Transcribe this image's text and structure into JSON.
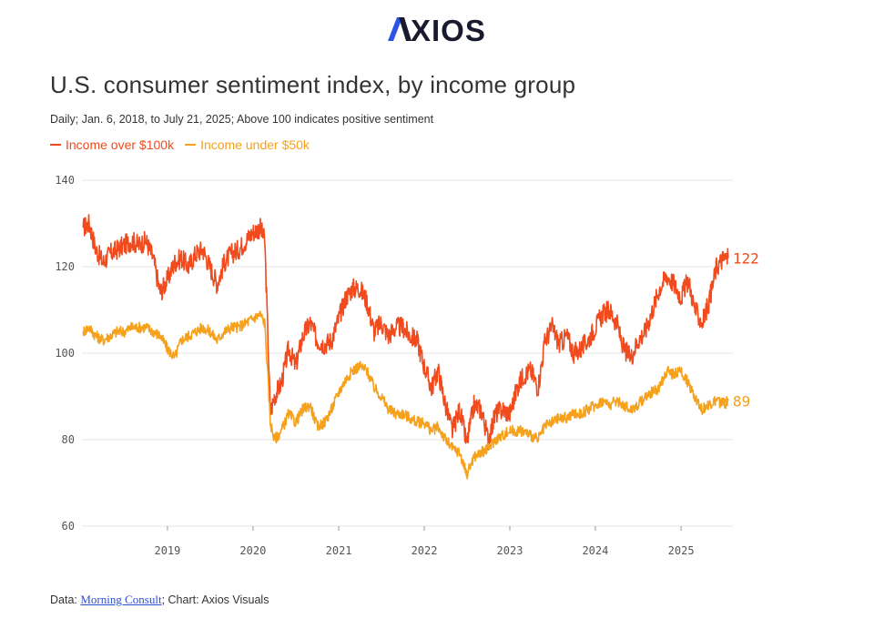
{
  "brand": {
    "name": "AXIOS"
  },
  "colors": {
    "high_income": "#f04a1d",
    "low_income": "#f5a11c",
    "grid": "#e4e4e4",
    "logo_dark": "#1a1a2e",
    "logo_blue": "#2a55e6"
  },
  "source": {
    "prefix": "Data: ",
    "link_text": "Morning Consult",
    "suffix": "; Chart: Axios Visuals"
  },
  "chart_data": {
    "type": "line",
    "title": "U.S. consumer sentiment index, by income group",
    "subtitle": "Daily; Jan. 6, 2018, to July 21, 2025; Above 100 indicates positive sentiment",
    "ylim": [
      60,
      140
    ],
    "yticks": [
      60,
      80,
      100,
      120,
      140
    ],
    "xticks": [
      "2019",
      "2020",
      "2021",
      "2022",
      "2023",
      "2024",
      "2025"
    ],
    "grid": true,
    "legend_position": "top-left",
    "series": [
      {
        "name": "Income over $100k",
        "color": "#f04a1d",
        "end_label": "122",
        "x": [
          "2018-01-06",
          "2018-02-01",
          "2018-03-01",
          "2018-04-01",
          "2018-05-01",
          "2018-06-01",
          "2018-07-01",
          "2018-08-01",
          "2018-09-01",
          "2018-10-01",
          "2018-11-01",
          "2018-12-01",
          "2019-01-01",
          "2019-02-01",
          "2019-03-01",
          "2019-04-01",
          "2019-05-01",
          "2019-06-01",
          "2019-07-01",
          "2019-08-01",
          "2019-09-01",
          "2019-10-01",
          "2019-11-01",
          "2019-12-01",
          "2020-01-01",
          "2020-02-01",
          "2020-02-20",
          "2020-03-01",
          "2020-03-15",
          "2020-04-01",
          "2020-05-01",
          "2020-06-01",
          "2020-07-01",
          "2020-08-01",
          "2020-09-01",
          "2020-10-01",
          "2020-11-01",
          "2020-12-01",
          "2021-01-01",
          "2021-02-01",
          "2021-03-01",
          "2021-04-01",
          "2021-05-01",
          "2021-06-01",
          "2021-07-01",
          "2021-08-01",
          "2021-09-01",
          "2021-10-01",
          "2021-11-01",
          "2021-12-01",
          "2022-01-01",
          "2022-02-01",
          "2022-03-01",
          "2022-04-01",
          "2022-05-01",
          "2022-06-01",
          "2022-07-01",
          "2022-08-01",
          "2022-09-01",
          "2022-10-01",
          "2022-11-01",
          "2022-12-01",
          "2023-01-01",
          "2023-02-01",
          "2023-03-01",
          "2023-04-01",
          "2023-05-01",
          "2023-06-01",
          "2023-07-01",
          "2023-08-01",
          "2023-09-01",
          "2023-10-01",
          "2023-11-01",
          "2023-12-01",
          "2024-01-01",
          "2024-02-01",
          "2024-03-01",
          "2024-04-01",
          "2024-05-01",
          "2024-06-01",
          "2024-07-01",
          "2024-08-01",
          "2024-09-01",
          "2024-10-01",
          "2024-11-01",
          "2024-12-01",
          "2025-01-01",
          "2025-02-01",
          "2025-03-01",
          "2025-04-01",
          "2025-05-01",
          "2025-06-01",
          "2025-07-01",
          "2025-07-21"
        ],
        "values": [
          129,
          130,
          124,
          121,
          123,
          124,
          125,
          126,
          125,
          126,
          122,
          114,
          117,
          121,
          122,
          120,
          123,
          124,
          120,
          116,
          121,
          123,
          124,
          126,
          128,
          129,
          126,
          110,
          86,
          90,
          93,
          101,
          97,
          104,
          107,
          103,
          102,
          103,
          108,
          113,
          115,
          115,
          112,
          105,
          107,
          104,
          106,
          106,
          104,
          103,
          97,
          92,
          96,
          88,
          82,
          87,
          79,
          88,
          87,
          80,
          86,
          87,
          86,
          92,
          95,
          96,
          92,
          103,
          106,
          102,
          104,
          100,
          101,
          103,
          106,
          109,
          110,
          107,
          101,
          99,
          103,
          105,
          110,
          115,
          118,
          116,
          113,
          117,
          110,
          107,
          112,
          120,
          122,
          122
        ]
      },
      {
        "name": "Income under $50k",
        "color": "#f5a11c",
        "end_label": "89",
        "x": [
          "2018-01-06",
          "2018-02-01",
          "2018-03-01",
          "2018-04-01",
          "2018-05-01",
          "2018-06-01",
          "2018-07-01",
          "2018-08-01",
          "2018-09-01",
          "2018-10-01",
          "2018-11-01",
          "2018-12-01",
          "2019-01-01",
          "2019-02-01",
          "2019-03-01",
          "2019-04-01",
          "2019-05-01",
          "2019-06-01",
          "2019-07-01",
          "2019-08-01",
          "2019-09-01",
          "2019-10-01",
          "2019-11-01",
          "2019-12-01",
          "2020-01-01",
          "2020-02-01",
          "2020-02-20",
          "2020-03-01",
          "2020-03-15",
          "2020-04-01",
          "2020-05-01",
          "2020-06-01",
          "2020-07-01",
          "2020-08-01",
          "2020-09-01",
          "2020-10-01",
          "2020-11-01",
          "2020-12-01",
          "2021-01-01",
          "2021-02-01",
          "2021-03-01",
          "2021-04-01",
          "2021-05-01",
          "2021-06-01",
          "2021-07-01",
          "2021-08-01",
          "2021-09-01",
          "2021-10-01",
          "2021-11-01",
          "2021-12-01",
          "2022-01-01",
          "2022-02-01",
          "2022-03-01",
          "2022-04-01",
          "2022-05-01",
          "2022-06-01",
          "2022-07-01",
          "2022-08-01",
          "2022-09-01",
          "2022-10-01",
          "2022-11-01",
          "2022-12-01",
          "2023-01-01",
          "2023-02-01",
          "2023-03-01",
          "2023-04-01",
          "2023-05-01",
          "2023-06-01",
          "2023-07-01",
          "2023-08-01",
          "2023-09-01",
          "2023-10-01",
          "2023-11-01",
          "2023-12-01",
          "2024-01-01",
          "2024-02-01",
          "2024-03-01",
          "2024-04-01",
          "2024-05-01",
          "2024-06-01",
          "2024-07-01",
          "2024-08-01",
          "2024-09-01",
          "2024-10-01",
          "2024-11-01",
          "2024-12-01",
          "2025-01-01",
          "2025-02-01",
          "2025-03-01",
          "2025-04-01",
          "2025-05-01",
          "2025-06-01",
          "2025-07-01",
          "2025-07-21"
        ],
        "values": [
          105,
          106,
          104,
          103,
          104,
          105,
          105,
          106,
          106,
          106,
          105,
          104,
          101,
          99,
          103,
          104,
          105,
          106,
          105,
          103,
          105,
          106,
          106,
          107,
          108,
          109,
          107,
          98,
          84,
          80,
          82,
          86,
          84,
          87,
          88,
          83,
          84,
          87,
          91,
          94,
          96,
          97,
          96,
          92,
          90,
          87,
          86,
          86,
          85,
          84,
          84,
          82,
          83,
          80,
          78,
          77,
          72,
          76,
          77,
          78,
          80,
          81,
          82,
          82,
          82,
          81,
          80,
          83,
          84,
          85,
          85,
          86,
          86,
          87,
          88,
          89,
          88,
          89,
          88,
          87,
          88,
          90,
          91,
          92,
          96,
          95,
          96,
          93,
          90,
          87,
          88,
          89,
          88,
          89
        ]
      }
    ]
  }
}
